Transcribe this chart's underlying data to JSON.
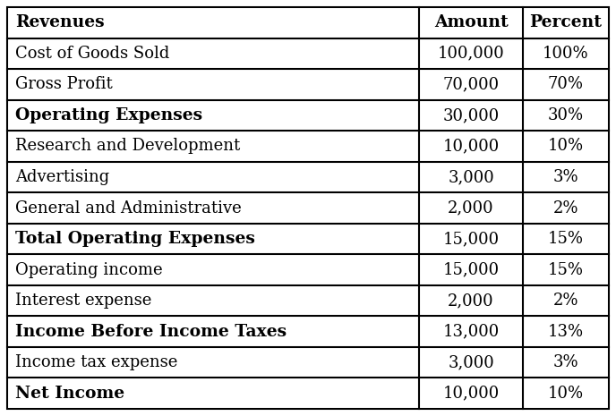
{
  "rows": [
    {
      "label": "Revenues",
      "amount": "Amount",
      "percent": "Percent",
      "label_bold": true,
      "num_bold": true
    },
    {
      "label": "Cost of Goods Sold",
      "amount": "100,000",
      "percent": "100%",
      "label_bold": false,
      "num_bold": false
    },
    {
      "label": "Gross Profit",
      "amount": "70,000",
      "percent": "70%",
      "label_bold": false,
      "num_bold": false
    },
    {
      "label": "Operating Expenses",
      "amount": "30,000",
      "percent": "30%",
      "label_bold": true,
      "num_bold": false
    },
    {
      "label": "Research and Development",
      "amount": "10,000",
      "percent": "10%",
      "label_bold": false,
      "num_bold": false
    },
    {
      "label": "Advertising",
      "amount": "3,000",
      "percent": "3%",
      "label_bold": false,
      "num_bold": false
    },
    {
      "label": "General and Administrative",
      "amount": "2,000",
      "percent": "2%",
      "label_bold": false,
      "num_bold": false
    },
    {
      "label": "Total Operating Expenses",
      "amount": "15,000",
      "percent": "15%",
      "label_bold": true,
      "num_bold": false
    },
    {
      "label": "Operating income",
      "amount": "15,000",
      "percent": "15%",
      "label_bold": false,
      "num_bold": false
    },
    {
      "label": "Interest expense",
      "amount": "2,000",
      "percent": "2%",
      "label_bold": false,
      "num_bold": false
    },
    {
      "label": "Income Before Income Taxes",
      "amount": "13,000",
      "percent": "13%",
      "label_bold": true,
      "num_bold": false
    },
    {
      "label": "Income tax expense",
      "amount": "3,000",
      "percent": "3%",
      "label_bold": false,
      "num_bold": false
    },
    {
      "label": "Net Income",
      "amount": "10,000",
      "percent": "10%",
      "label_bold": true,
      "num_bold": false
    }
  ],
  "border_color": "#000000",
  "background_color": "#ffffff",
  "text_color": "#000000",
  "font_size": 13.0,
  "bold_font_size": 13.5,
  "fig_width": 6.88,
  "fig_height": 4.65,
  "dpi": 100
}
